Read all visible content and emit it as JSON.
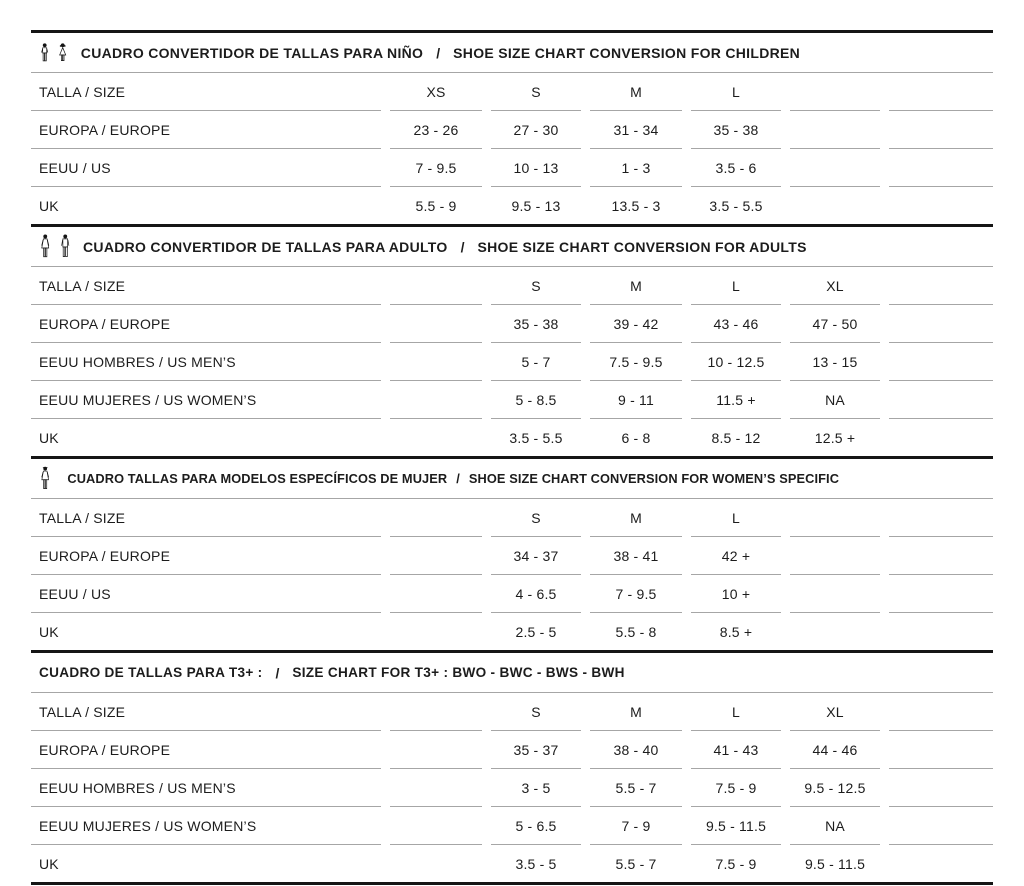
{
  "page": {
    "background": "#ffffff",
    "text_color": "#1c1c1c",
    "rule_color": "#a6a6a6",
    "heavy_rule_color": "#151515"
  },
  "title_separator": "/",
  "tables": [
    {
      "id": "children",
      "icons": [
        "child-boy-icon",
        "child-girl-icon"
      ],
      "title_es": "CUADRO CONVERTIDOR DE TALLAS PARA NIÑO",
      "title_en": "SHOE SIZE CHART CONVERSION FOR CHILDREN",
      "rows": [
        {
          "label": "TALLA / SIZE",
          "cells": [
            "XS",
            "S",
            "M",
            "L",
            "",
            ""
          ]
        },
        {
          "label": "EUROPA / EUROPE",
          "cells": [
            "23 - 26",
            "27 - 30",
            "31 - 34",
            "35 - 38",
            "",
            ""
          ]
        },
        {
          "label": "EEUU / US",
          "cells": [
            "7 - 9.5",
            "10 - 13",
            "1 - 3",
            "3.5 - 6",
            "",
            ""
          ]
        },
        {
          "label": "UK",
          "cells": [
            "5.5 - 9",
            "9.5 - 13",
            "13.5 - 3",
            "3.5 - 5.5",
            "",
            ""
          ]
        }
      ]
    },
    {
      "id": "adults",
      "icons": [
        "adult-woman-icon",
        "adult-man-icon"
      ],
      "title_es": "CUADRO CONVERTIDOR DE TALLAS PARA ADULTO",
      "title_en": "SHOE SIZE CHART CONVERSION FOR ADULTS",
      "rows": [
        {
          "label": "TALLA / SIZE",
          "cells": [
            "",
            "S",
            "M",
            "L",
            "XL",
            ""
          ]
        },
        {
          "label": "EUROPA / EUROPE",
          "cells": [
            "",
            "35 - 38",
            "39 - 42",
            "43 - 46",
            "47 - 50",
            ""
          ]
        },
        {
          "label": "EEUU HOMBRES / US MEN’S",
          "cells": [
            "",
            "5 - 7",
            "7.5 - 9.5",
            "10 - 12.5",
            "13 - 15",
            ""
          ]
        },
        {
          "label": "EEUU MUJERES / US WOMEN’S",
          "cells": [
            "",
            "5 - 8.5",
            "9 - 11",
            "11.5 +",
            "NA",
            ""
          ]
        },
        {
          "label": "UK",
          "cells": [
            "",
            "3.5 - 5.5",
            "6 - 8",
            "8.5 - 12",
            "12.5 +",
            ""
          ]
        }
      ]
    },
    {
      "id": "women",
      "icons": [
        "woman-icon"
      ],
      "title_es": "CUADRO TALLAS PARA MODELOS ESPECÍFICOS DE MUJER",
      "title_en": "SHOE SIZE CHART CONVERSION FOR WOMEN’S SPECIFIC",
      "rows": [
        {
          "label": "TALLA / SIZE",
          "cells": [
            "",
            "S",
            "M",
            "L",
            "",
            ""
          ]
        },
        {
          "label": "EUROPA / EUROPE",
          "cells": [
            "",
            "34 - 37",
            "38 - 41",
            "42 +",
            "",
            ""
          ]
        },
        {
          "label": "EEUU / US",
          "cells": [
            "",
            "4 - 6.5",
            "7 - 9.5",
            "10 +",
            "",
            ""
          ]
        },
        {
          "label": "UK",
          "cells": [
            "",
            "2.5 - 5",
            "5.5 - 8",
            "8.5 +",
            "",
            ""
          ]
        }
      ]
    },
    {
      "id": "t3",
      "icons": [],
      "title_es": "CUADRO DE TALLAS PARA T3+ :",
      "title_en": "SIZE CHART FOR T3+ :  BWO - BWC - BWS - BWH",
      "rows": [
        {
          "label": "TALLA / SIZE",
          "cells": [
            "",
            "S",
            "M",
            "L",
            "XL",
            ""
          ]
        },
        {
          "label": "EUROPA / EUROPE",
          "cells": [
            "",
            "35 - 37",
            "38 - 40",
            "41 - 43",
            "44 - 46",
            ""
          ]
        },
        {
          "label": "EEUU HOMBRES / US MEN’S",
          "cells": [
            "",
            "3 - 5",
            "5.5 - 7",
            "7.5 - 9",
            "9.5 - 12.5",
            ""
          ]
        },
        {
          "label": "EEUU MUJERES / US WOMEN’S",
          "cells": [
            "",
            "5 - 6.5",
            "7 - 9",
            "9.5 - 11.5",
            "NA",
            ""
          ]
        },
        {
          "label": "UK",
          "cells": [
            "",
            "3.5 - 5",
            "5.5 - 7",
            "7.5 - 9",
            "9.5 - 11.5",
            ""
          ]
        }
      ]
    }
  ]
}
